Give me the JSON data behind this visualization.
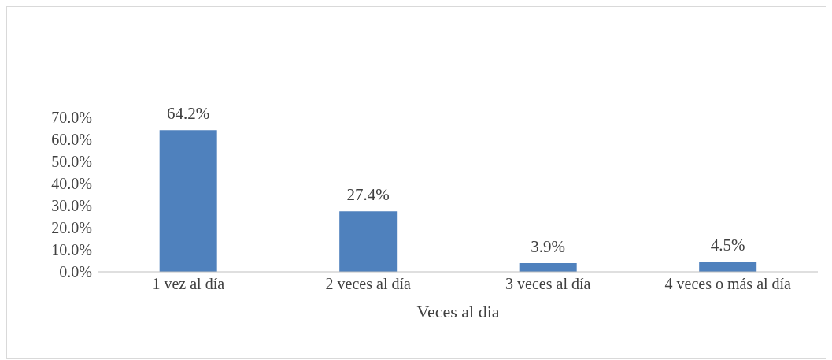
{
  "chart_data": {
    "type": "bar",
    "xlabel": "Veces al dia",
    "categories": [
      "1 vez al día",
      "2 veces al día",
      "3 veces al día",
      "4 veces o más al día"
    ],
    "values": [
      64.2,
      27.4,
      3.9,
      4.5
    ],
    "value_labels": [
      "64.2%",
      "27.4%",
      "3.9%",
      "4.5%"
    ],
    "color": "#4f81bd",
    "ylim": [
      0,
      70
    ],
    "yticks": [
      {
        "value": 0,
        "label": "0.0%"
      },
      {
        "value": 10,
        "label": "10.0%"
      },
      {
        "value": 20,
        "label": "20.0%"
      },
      {
        "value": 30,
        "label": "30.0%"
      },
      {
        "value": 40,
        "label": "40.0%"
      },
      {
        "value": 50,
        "label": "50.0%"
      },
      {
        "value": 60,
        "label": "60.0%"
      },
      {
        "value": 70,
        "label": "70.0%"
      }
    ],
    "grid": false,
    "legend": false
  }
}
